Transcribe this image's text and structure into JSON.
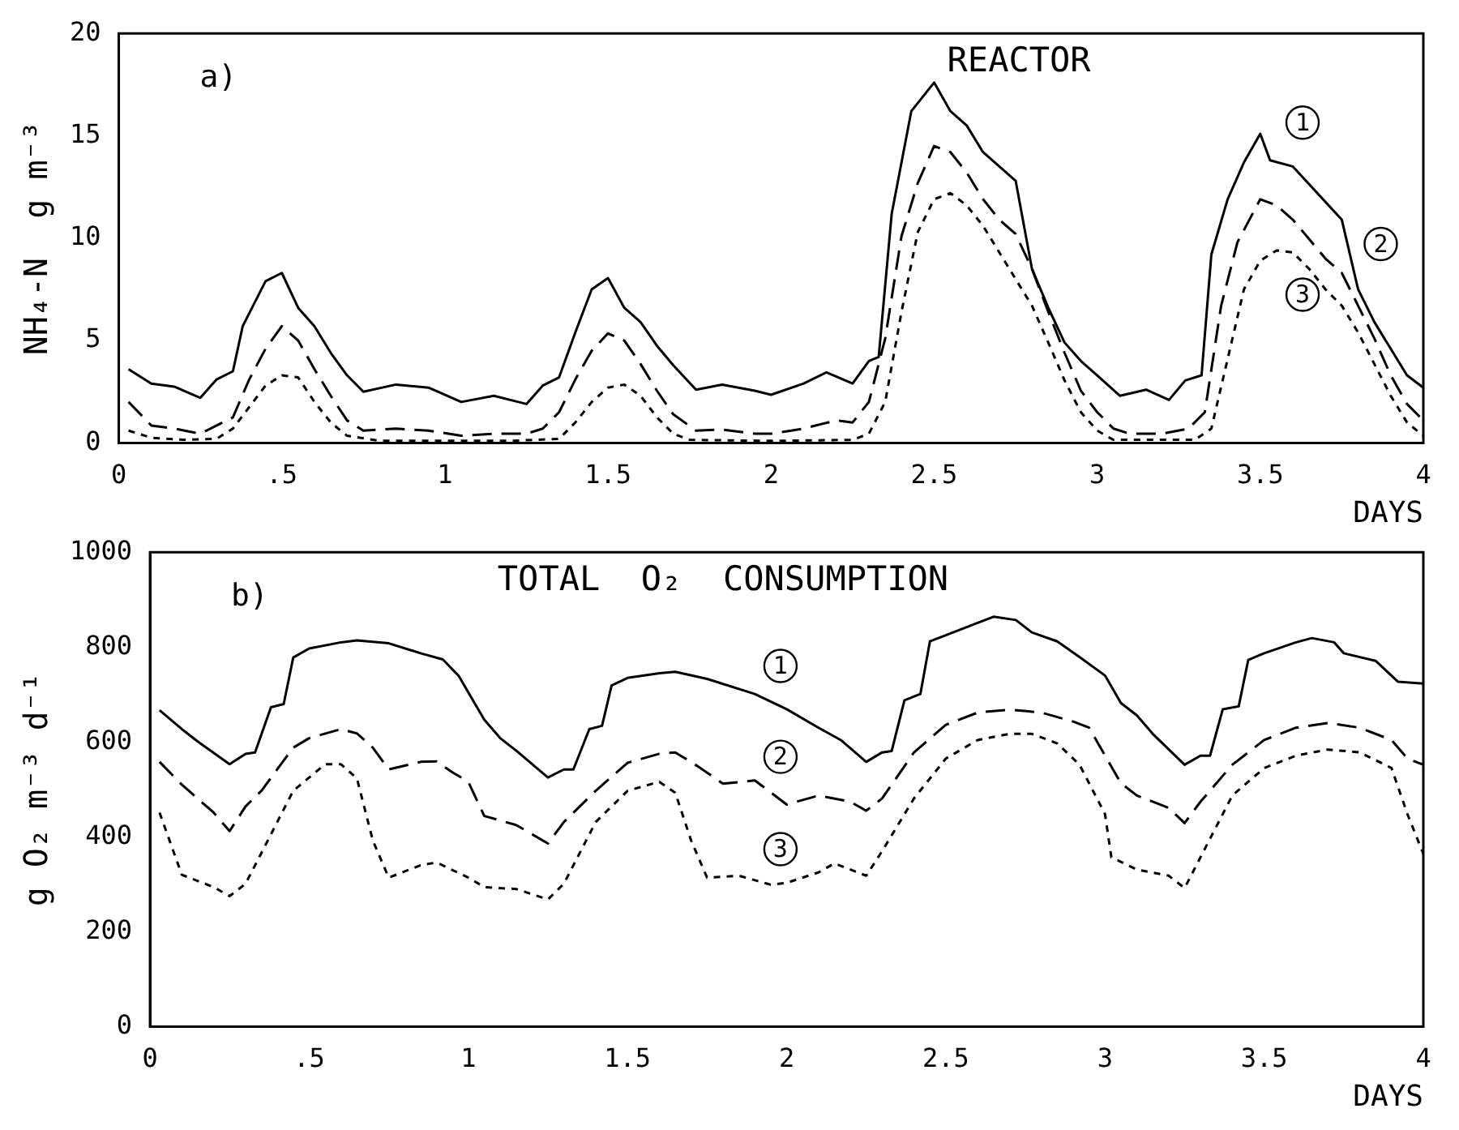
{
  "chart_data": [
    {
      "type": "line",
      "title": "REACTOR",
      "annotations": [
        "a)"
      ],
      "xlabel": "DAYS",
      "ylabel": "NH₄-N  g m⁻³",
      "xlim": [
        0,
        4
      ],
      "xticks": [
        0,
        {
          "value": 0.5,
          "label": ".5"
        },
        1,
        1.5,
        2,
        2.5,
        3,
        3.5,
        4
      ],
      "ylim": [
        0,
        20
      ],
      "yticks": [
        0,
        5,
        10,
        15,
        20
      ],
      "marker": "none",
      "series": [
        {
          "name": "1",
          "color": "#000000",
          "line_style": "solid",
          "x": [
            0.03,
            0.1,
            0.17,
            0.25,
            0.3,
            0.35,
            0.38,
            0.45,
            0.5,
            0.55,
            0.6,
            0.65,
            0.7,
            0.75,
            0.85,
            0.95,
            1.05,
            1.15,
            1.25,
            1.3,
            1.35,
            1.4,
            1.45,
            1.5,
            1.55,
            1.6,
            1.65,
            1.7,
            1.77,
            1.85,
            1.95,
            2.0,
            2.1,
            2.17,
            2.25,
            2.3,
            2.33,
            2.37,
            2.43,
            2.5,
            2.55,
            2.6,
            2.65,
            2.75,
            2.8,
            2.85,
            2.9,
            2.95,
            3.0,
            3.07,
            3.15,
            3.22,
            3.27,
            3.32,
            3.35,
            3.4,
            3.45,
            3.5,
            3.53,
            3.6,
            3.75,
            3.8,
            3.85,
            3.9,
            3.95,
            4.0
          ],
          "values": [
            3.6,
            2.9,
            2.75,
            2.2,
            3.1,
            3.5,
            5.7,
            7.9,
            8.3,
            6.6,
            5.7,
            4.4,
            3.3,
            2.5,
            2.85,
            2.7,
            2.0,
            2.3,
            1.9,
            2.8,
            3.2,
            5.4,
            7.5,
            8.05,
            6.6,
            5.9,
            4.75,
            3.8,
            2.6,
            2.85,
            2.55,
            2.35,
            2.9,
            3.45,
            2.9,
            4.0,
            4.2,
            11.2,
            16.2,
            17.6,
            16.2,
            15.5,
            14.2,
            12.8,
            8.5,
            6.6,
            4.9,
            4.0,
            3.3,
            2.3,
            2.6,
            2.1,
            3.05,
            3.3,
            9.2,
            11.9,
            13.7,
            15.1,
            13.8,
            13.5,
            10.9,
            7.5,
            5.9,
            4.6,
            3.3,
            2.7
          ]
        },
        {
          "name": "2",
          "color": "#000000",
          "line_style": "dashed",
          "x": [
            0.03,
            0.1,
            0.17,
            0.25,
            0.3,
            0.35,
            0.4,
            0.45,
            0.5,
            0.55,
            0.6,
            0.65,
            0.7,
            0.75,
            0.85,
            0.95,
            1.05,
            1.15,
            1.25,
            1.3,
            1.35,
            1.4,
            1.45,
            1.5,
            1.55,
            1.6,
            1.65,
            1.7,
            1.77,
            1.85,
            1.95,
            2.0,
            2.1,
            2.2,
            2.25,
            2.3,
            2.35,
            2.4,
            2.45,
            2.5,
            2.55,
            2.6,
            2.65,
            2.7,
            2.75,
            2.8,
            2.85,
            2.9,
            2.95,
            3.0,
            3.05,
            3.1,
            3.2,
            3.28,
            3.33,
            3.38,
            3.43,
            3.5,
            3.55,
            3.6,
            3.65,
            3.7,
            3.75,
            3.8,
            3.85,
            3.9,
            3.95,
            4.0
          ],
          "values": [
            2.0,
            0.85,
            0.7,
            0.45,
            0.85,
            1.25,
            3.1,
            4.6,
            5.7,
            5.0,
            3.6,
            2.3,
            1.1,
            0.6,
            0.7,
            0.6,
            0.35,
            0.45,
            0.45,
            0.7,
            1.5,
            3.1,
            4.5,
            5.35,
            5.0,
            3.85,
            2.55,
            1.4,
            0.6,
            0.65,
            0.45,
            0.45,
            0.7,
            1.1,
            1.0,
            2.0,
            5.1,
            10.1,
            12.7,
            14.5,
            14.2,
            13.2,
            11.9,
            10.9,
            10.2,
            8.5,
            6.4,
            4.4,
            2.55,
            1.5,
            0.7,
            0.45,
            0.45,
            0.7,
            1.5,
            6.7,
            9.8,
            11.9,
            11.6,
            10.9,
            9.95,
            9.0,
            8.3,
            6.7,
            5.1,
            3.3,
            1.9,
            1.1
          ]
        },
        {
          "name": "3",
          "color": "#000000",
          "line_style": "dotted",
          "x": [
            0.03,
            0.1,
            0.2,
            0.3,
            0.35,
            0.4,
            0.45,
            0.5,
            0.55,
            0.6,
            0.65,
            0.7,
            0.8,
            1.0,
            1.2,
            1.35,
            1.4,
            1.45,
            1.5,
            1.55,
            1.6,
            1.65,
            1.7,
            1.75,
            2.0,
            2.25,
            2.3,
            2.35,
            2.4,
            2.45,
            2.5,
            2.55,
            2.6,
            2.65,
            2.7,
            2.75,
            2.8,
            2.85,
            2.9,
            2.95,
            3.0,
            3.05,
            3.3,
            3.35,
            3.4,
            3.45,
            3.5,
            3.55,
            3.6,
            3.65,
            3.7,
            3.75,
            3.8,
            3.85,
            3.9,
            3.95,
            4.0
          ],
          "values": [
            0.6,
            0.25,
            0.15,
            0.2,
            0.7,
            1.75,
            2.8,
            3.3,
            3.2,
            2.0,
            1.0,
            0.35,
            0.1,
            0.1,
            0.1,
            0.2,
            1.0,
            2.0,
            2.7,
            2.85,
            2.3,
            1.25,
            0.45,
            0.15,
            0.1,
            0.15,
            0.45,
            2.0,
            6.4,
            10.3,
            11.9,
            12.2,
            11.6,
            10.6,
            9.3,
            8.0,
            6.7,
            4.9,
            3.05,
            1.5,
            0.6,
            0.15,
            0.15,
            0.7,
            4.1,
            7.5,
            8.9,
            9.4,
            9.3,
            8.5,
            7.5,
            6.7,
            5.4,
            3.85,
            2.3,
            1.0,
            0.35
          ]
        }
      ]
    },
    {
      "type": "line",
      "title": "TOTAL  O₂  CONSUMPTION",
      "annotations": [
        "b)"
      ],
      "xlabel": "DAYS",
      "ylabel": "g O₂ m⁻³ d⁻¹",
      "xlim": [
        0,
        4
      ],
      "xticks": [
        0,
        {
          "value": 0.5,
          "label": ".5"
        },
        1,
        1.5,
        2,
        2.5,
        3,
        3.5,
        4
      ],
      "ylim": [
        0,
        1000
      ],
      "yticks": [
        0,
        200,
        400,
        600,
        800,
        1000
      ],
      "marker": "none",
      "series": [
        {
          "name": "1",
          "color": "#000000",
          "line_style": "solid",
          "x": [
            0.03,
            0.1,
            0.15,
            0.25,
            0.3,
            0.33,
            0.38,
            0.42,
            0.45,
            0.5,
            0.6,
            0.65,
            0.75,
            0.85,
            0.92,
            0.97,
            1.05,
            1.1,
            1.15,
            1.25,
            1.3,
            1.33,
            1.38,
            1.42,
            1.45,
            1.5,
            1.6,
            1.65,
            1.75,
            1.9,
            2.0,
            2.1,
            2.17,
            2.25,
            2.3,
            2.33,
            2.37,
            2.42,
            2.45,
            2.5,
            2.6,
            2.65,
            2.72,
            2.77,
            2.85,
            2.92,
            3.0,
            3.05,
            3.1,
            3.15,
            3.25,
            3.3,
            3.33,
            3.37,
            3.42,
            3.45,
            3.5,
            3.6,
            3.65,
            3.72,
            3.75,
            3.85,
            3.92,
            4.0
          ],
          "values": [
            667,
            627,
            601,
            553,
            575,
            578,
            673,
            680,
            778,
            797,
            810,
            814,
            808,
            787,
            774,
            739,
            647,
            608,
            582,
            525,
            542,
            542,
            627,
            634,
            719,
            735,
            745,
            748,
            733,
            701,
            669,
            630,
            604,
            558,
            578,
            581,
            688,
            701,
            812,
            825,
            851,
            864,
            857,
            831,
            812,
            779,
            740,
            682,
            656,
            617,
            552,
            571,
            571,
            669,
            675,
            773,
            787,
            810,
            819,
            810,
            787,
            771,
            727,
            723
          ]
        },
        {
          "name": "2",
          "color": "#000000",
          "line_style": "dashed",
          "x": [
            0.03,
            0.1,
            0.2,
            0.25,
            0.3,
            0.35,
            0.45,
            0.5,
            0.6,
            0.65,
            0.7,
            0.75,
            0.85,
            0.9,
            0.95,
            1.0,
            1.05,
            1.15,
            1.25,
            1.3,
            1.4,
            1.5,
            1.6,
            1.65,
            1.72,
            1.8,
            1.9,
            2.0,
            2.1,
            2.2,
            2.25,
            2.3,
            2.4,
            2.5,
            2.6,
            2.7,
            2.8,
            2.9,
            2.95,
            3.05,
            3.1,
            3.2,
            3.25,
            3.3,
            3.4,
            3.5,
            3.6,
            3.7,
            3.8,
            3.9,
            3.95,
            4.0
          ],
          "values": [
            558,
            510,
            451,
            412,
            464,
            497,
            588,
            608,
            627,
            618,
            588,
            542,
            558,
            559,
            536,
            516,
            444,
            425,
            386,
            431,
            497,
            556,
            575,
            578,
            549,
            512,
            519,
            468,
            487,
            474,
            455,
            481,
            578,
            636,
            662,
            668,
            662,
            643,
            630,
            513,
            487,
            461,
            429,
            474,
            552,
            604,
            630,
            640,
            630,
            604,
            565,
            552
          ]
        },
        {
          "name": "3",
          "color": "#000000",
          "line_style": "dotted",
          "x": [
            0.03,
            0.1,
            0.2,
            0.25,
            0.3,
            0.35,
            0.45,
            0.55,
            0.6,
            0.65,
            0.7,
            0.75,
            0.85,
            0.9,
            1.0,
            1.05,
            1.15,
            1.25,
            1.3,
            1.4,
            1.5,
            1.6,
            1.65,
            1.7,
            1.75,
            1.85,
            1.95,
            2.0,
            2.1,
            2.15,
            2.25,
            2.3,
            2.4,
            2.5,
            2.6,
            2.7,
            2.77,
            2.85,
            2.92,
            3.0,
            3.02,
            3.1,
            3.2,
            3.25,
            3.3,
            3.4,
            3.5,
            3.6,
            3.7,
            3.8,
            3.9,
            3.95,
            4.0
          ],
          "values": [
            451,
            320,
            294,
            275,
            301,
            366,
            497,
            553,
            553,
            523,
            392,
            314,
            340,
            346,
            314,
            294,
            290,
            268,
            301,
            431,
            497,
            516,
            493,
            392,
            314,
            318,
            299,
            303,
            325,
            344,
            318,
            370,
            481,
            565,
            604,
            617,
            617,
            597,
            552,
            448,
            357,
            331,
            318,
            292,
            357,
            487,
            545,
            571,
            584,
            578,
            545,
            448,
            364
          ]
        }
      ]
    }
  ]
}
